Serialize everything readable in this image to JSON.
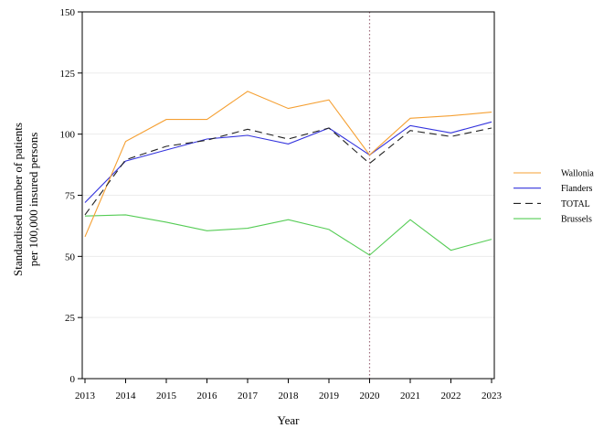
{
  "chart_data": {
    "type": "line",
    "xlabel": "Year",
    "ylabel_lines": [
      "Standardised number of patients",
      "per 100,000 insured persons"
    ],
    "x": [
      2013,
      2014,
      2015,
      2016,
      2017,
      2018,
      2019,
      2020,
      2021,
      2022,
      2023
    ],
    "xlim": [
      2013,
      2023
    ],
    "ylim": [
      0,
      150
    ],
    "yticks": [
      0,
      25,
      50,
      75,
      100,
      125,
      150
    ],
    "grid": true,
    "legend_position": "right",
    "reference_line": {
      "x": 2020,
      "style": "dotted",
      "color": "#9e6b7b"
    },
    "series": [
      {
        "name": "Wallonia",
        "color": "#f5a033",
        "dash": "solid",
        "values": [
          58,
          97,
          106,
          106,
          117.5,
          110.5,
          114,
          91.5,
          106.5,
          107.5,
          109
        ]
      },
      {
        "name": "Flanders",
        "color": "#3333dd",
        "dash": "solid",
        "values": [
          72,
          89,
          93.5,
          98,
          99.5,
          96,
          102.5,
          91.5,
          103.5,
          100.5,
          105
        ]
      },
      {
        "name": "TOTAL",
        "color": "#222222",
        "dash": "dashed",
        "values": [
          67,
          89.5,
          95,
          97.5,
          102,
          98,
          102.5,
          88,
          101.5,
          99,
          102.5
        ]
      },
      {
        "name": "Brussels",
        "color": "#55cc55",
        "dash": "solid",
        "values": [
          66.5,
          67,
          64,
          60.5,
          61.5,
          65,
          61,
          50.5,
          65,
          52.5,
          57
        ]
      }
    ]
  }
}
